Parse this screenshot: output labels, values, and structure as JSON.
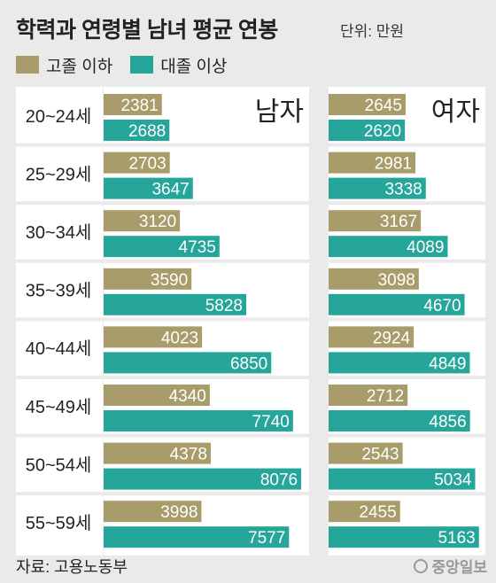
{
  "title": "학력과 연령별 남녀 평균 연봉",
  "unit_label": "단위: 만원",
  "source": "자료: 고용노동부",
  "logo": "중앙일보",
  "colors": {
    "high_school": "#a89d6a",
    "college": "#26a69a",
    "background": "#eaeaea",
    "panel": "#ffffff"
  },
  "chart_data": {
    "type": "bar",
    "orientation": "horizontal",
    "categories": [
      "20~24세",
      "25~29세",
      "30~34세",
      "35~39세",
      "40~44세",
      "45~49세",
      "50~54세",
      "55~59세"
    ],
    "panels": [
      {
        "label": "남자",
        "series": [
          {
            "name": "고졸 이하",
            "values": [
              2381,
              2703,
              3120,
              3590,
              4023,
              4340,
              4378,
              3998
            ]
          },
          {
            "name": "대졸 이상",
            "values": [
              2688,
              3647,
              4735,
              5828,
              6850,
              7740,
              8076,
              7577
            ]
          }
        ]
      },
      {
        "label": "여자",
        "series": [
          {
            "name": "고졸 이하",
            "values": [
              2645,
              2981,
              3167,
              3098,
              2924,
              2712,
              2543,
              2455
            ]
          },
          {
            "name": "대졸 이상",
            "values": [
              2620,
              3338,
              4089,
              4670,
              4849,
              4856,
              5034,
              5163
            ]
          }
        ]
      }
    ],
    "legend": [
      "고졸 이하",
      "대졸 이상"
    ],
    "legend_position": "top-left"
  }
}
